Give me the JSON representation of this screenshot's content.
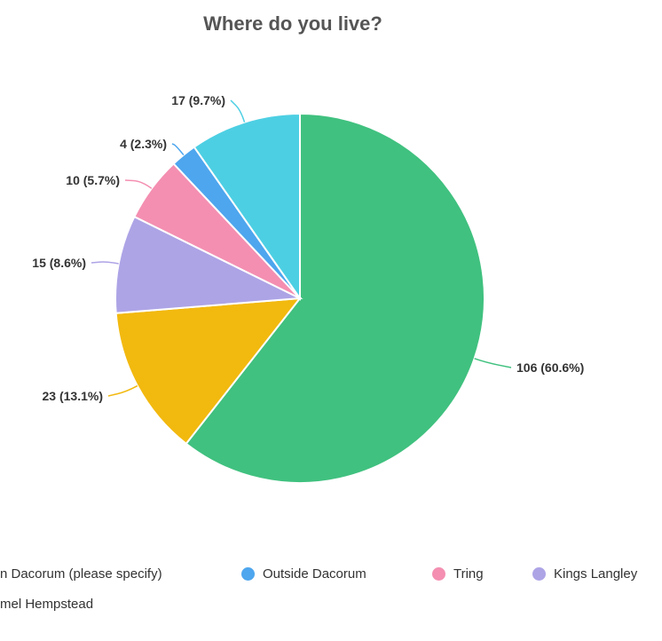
{
  "chart_data": {
    "type": "pie",
    "title": "Where do you live?",
    "slices": [
      {
        "label": "n Dacorum (please specify)",
        "value": 106,
        "percent": 60.6,
        "data_label": "106 (60.6%)",
        "color": "#40c17f"
      },
      {
        "label": "mel Hempstead",
        "value": 23,
        "percent": 13.1,
        "data_label": "23 (13.1%)",
        "color": "#f2b90f"
      },
      {
        "label": "Kings Langley",
        "value": 15,
        "percent": 8.6,
        "data_label": "15 (8.6%)",
        "color": "#ada4e6"
      },
      {
        "label": "Tring",
        "value": 10,
        "percent": 5.7,
        "data_label": "10 (5.7%)",
        "color": "#f48fb1"
      },
      {
        "label": "Outside Dacorum",
        "value": 4,
        "percent": 2.3,
        "data_label": "4 (2.3%)",
        "color": "#4ea6ee"
      },
      {
        "label": "",
        "value": 17,
        "percent": 9.7,
        "data_label": "17 (9.7%)",
        "color": "#4dcfe3"
      }
    ],
    "legend": {
      "placement": "bottom",
      "row1": [
        {
          "label": "n Dacorum (please specify)",
          "color": "#40c17f",
          "show_dot": false
        },
        {
          "label": "Outside Dacorum",
          "color": "#4ea6ee",
          "show_dot": true
        },
        {
          "label": "Tring",
          "color": "#f48fb1",
          "show_dot": true
        },
        {
          "label": "Kings Langley",
          "color": "#ada4e6",
          "show_dot": true
        }
      ],
      "row2": [
        {
          "label": "mel Hempstead",
          "color": "#f2b90f",
          "show_dot": false
        }
      ]
    }
  }
}
